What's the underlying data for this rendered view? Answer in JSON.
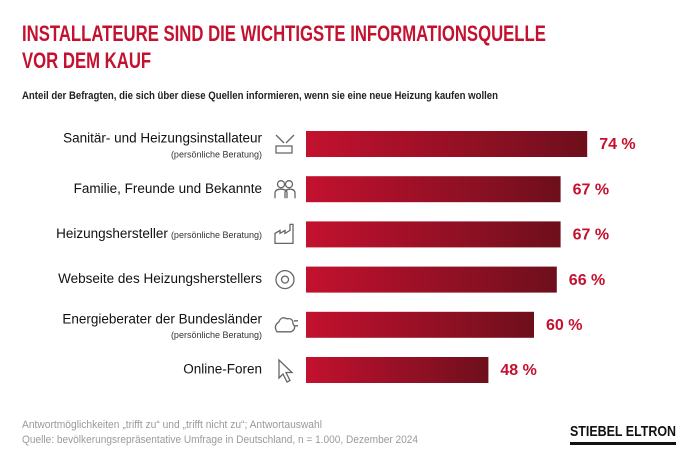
{
  "chart_data": {
    "type": "hbar",
    "title": "INSTALLATEURE SIND DIE WICHTIGSTE INFORMATIONSQUELLE\nVOR DEM KAUF",
    "subtitle": "Anteil der Befragten, die sich über diese Quellen informieren, wenn sie eine neue Heizung kaufen wollen",
    "categories": [
      "Sanitär- und Heizungsinstallateur",
      "Familie, Freunde und Bekannte",
      "Heizungshersteller",
      "Webseite des Heizungsherstellers",
      "Energieberater der Bundesländer",
      "Online-Foren"
    ],
    "category_notes": [
      "(persönliche Beratung)",
      null,
      "(persönliche Beratung)",
      null,
      "(persönliche Beratung)",
      null
    ],
    "values": [
      74,
      67,
      67,
      66,
      60,
      48
    ],
    "value_labels": [
      "74 %",
      "67 %",
      "67 %",
      "66 %",
      "60 %",
      "48 %"
    ],
    "color": "#c3112f",
    "notes": [
      "Antwortmöglichkeiten „trifft zu“ und „trifft nicht zu“; Antwortauswahl",
      "Quelle: bevölkerungsrepräsentative Umfrage in Deutschland, n = 1.000, Dezember 2024"
    ],
    "brand": "STIEBEL ELTRON"
  }
}
